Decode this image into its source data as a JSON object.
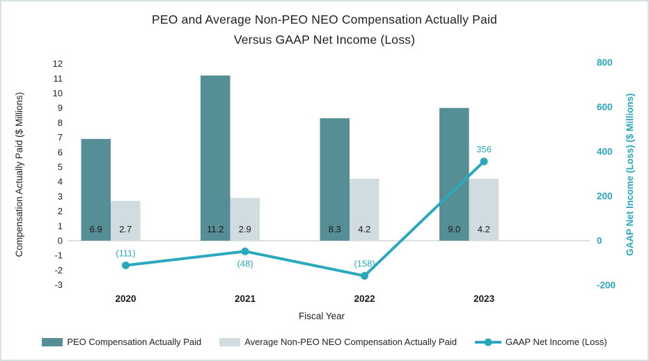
{
  "chart_data": {
    "type": "bar",
    "subtype": "combo-bar-line",
    "title_line1": "PEO and Average Non-PEO NEO Compensation Actually Paid",
    "title_line2": "Versus GAAP Net Income (Loss)",
    "categories": [
      "2020",
      "2021",
      "2022",
      "2023"
    ],
    "series": [
      {
        "name": "PEO Compensation Actually Paid",
        "type": "bar",
        "axis": "left",
        "color": "#568e96",
        "values": [
          6.9,
          11.2,
          8.3,
          9.0
        ],
        "labels": [
          "6.9",
          "11.2",
          "8.3",
          "9.0"
        ]
      },
      {
        "name": "Average Non-PEO NEO Compensation Actually Paid",
        "type": "bar",
        "axis": "left",
        "color": "#d1dce1",
        "values": [
          2.7,
          2.9,
          4.2,
          4.2
        ],
        "labels": [
          "2.7",
          "2.9",
          "4.2",
          "4.2"
        ]
      },
      {
        "name": "GAAP Net Income (Loss)",
        "type": "line",
        "axis": "right",
        "color": "#29a8be",
        "values": [
          -111,
          -48,
          -158,
          356
        ],
        "labels": [
          "(111)",
          "(48)",
          "(158)",
          "356"
        ],
        "label_positions": [
          "above",
          "below",
          "above",
          "above"
        ]
      }
    ],
    "x_axis": {
      "label": "Fiscal Year"
    },
    "y_left": {
      "label": "Compensation Actually Paid ($ Millions)",
      "min": -3,
      "max": 12,
      "step": 1,
      "text_color": "#222222"
    },
    "y_right": {
      "label": "GAAP Net Income (Loss) ($ Millions)",
      "min": -200,
      "max": 800,
      "step": 200,
      "text_color": "#29a8be"
    },
    "gridlines": "zero-line-only",
    "grid_color": "#d6d6d6",
    "bar_value_label_color": "#1a1a1a",
    "legend_position": "bottom"
  }
}
